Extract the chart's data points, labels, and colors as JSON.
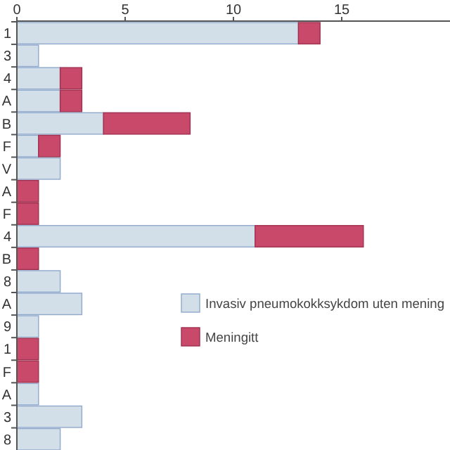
{
  "chart_data": {
    "type": "bar",
    "orientation": "horizontal",
    "stacked": true,
    "categories": [
      "1",
      "3",
      "4",
      "A",
      "B",
      "F",
      "V",
      "A",
      "F",
      "4",
      "B",
      "8",
      "A",
      "9",
      "1",
      "F",
      "A",
      "3",
      "8"
    ],
    "series": [
      {
        "name": "Invasiv pneumokokksykdom uten mening",
        "color": "#d3dfe8",
        "values": [
          13,
          1,
          2,
          2,
          4,
          1,
          2,
          0,
          0,
          11,
          0,
          2,
          3,
          1,
          0,
          0,
          1,
          3,
          2
        ]
      },
      {
        "name": "Meningitt",
        "color": "#c8496a",
        "values": [
          1,
          0,
          1,
          1,
          4,
          1,
          0,
          1,
          1,
          5,
          1,
          0,
          0,
          0,
          1,
          1,
          0,
          0,
          0
        ]
      }
    ],
    "xlim": [
      0,
      20
    ],
    "xticks": [
      0,
      5,
      10,
      15
    ],
    "grid": false,
    "legend": "right"
  }
}
